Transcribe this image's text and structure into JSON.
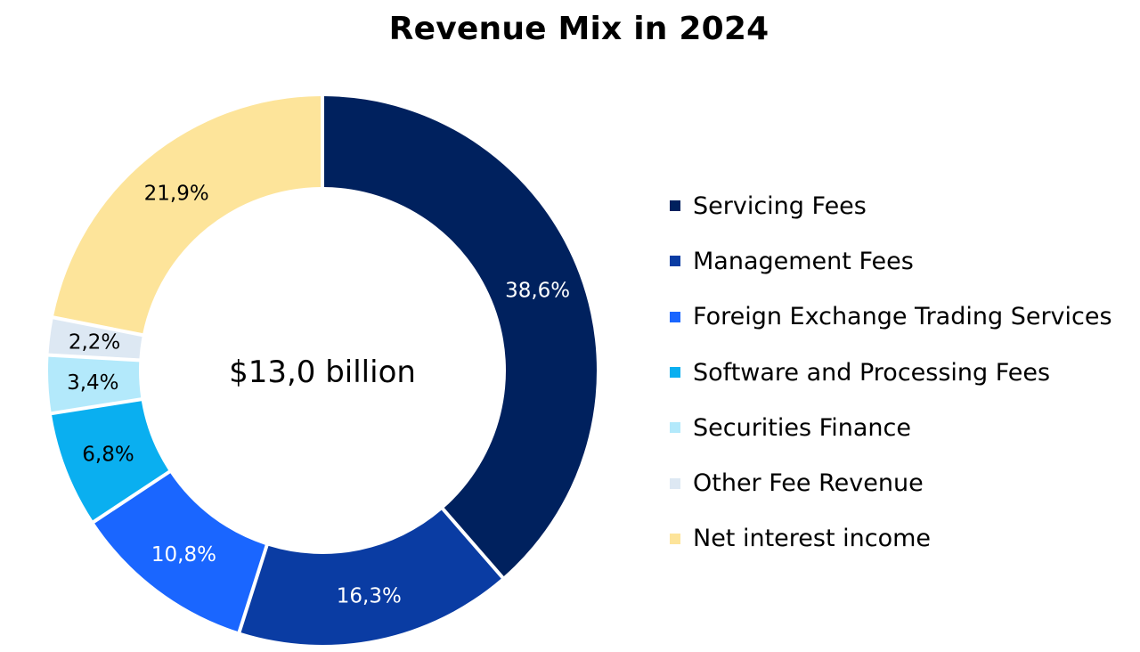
{
  "chart_data": {
    "type": "pie",
    "title": "Revenue Mix in 2024",
    "center_label": "$13,0 billion",
    "legend_position": "right",
    "slices": [
      {
        "name": "Servicing Fees",
        "value": 38.6,
        "label": "38,6%",
        "color": "#00215e",
        "label_color": "#ffffff"
      },
      {
        "name": "Management Fees",
        "value": 16.3,
        "label": "16,3%",
        "color": "#0a3ca3",
        "label_color": "#ffffff"
      },
      {
        "name": "Foreign Exchange Trading Services",
        "value": 10.8,
        "label": "10,8%",
        "color": "#1a66ff",
        "label_color": "#ffffff"
      },
      {
        "name": "Software and Processing Fees",
        "value": 6.8,
        "label": "6,8%",
        "color": "#0aaff0",
        "label_color": "#000000"
      },
      {
        "name": "Securities Finance",
        "value": 3.4,
        "label": "3,4%",
        "color": "#b3e9fb",
        "label_color": "#000000"
      },
      {
        "name": "Other Fee Revenue",
        "value": 2.2,
        "label": "2,2%",
        "color": "#dde8f3",
        "label_color": "#000000"
      },
      {
        "name": "Net interest income",
        "value": 21.9,
        "label": "21,9%",
        "color": "#fde49a",
        "label_color": "#000000"
      }
    ]
  }
}
